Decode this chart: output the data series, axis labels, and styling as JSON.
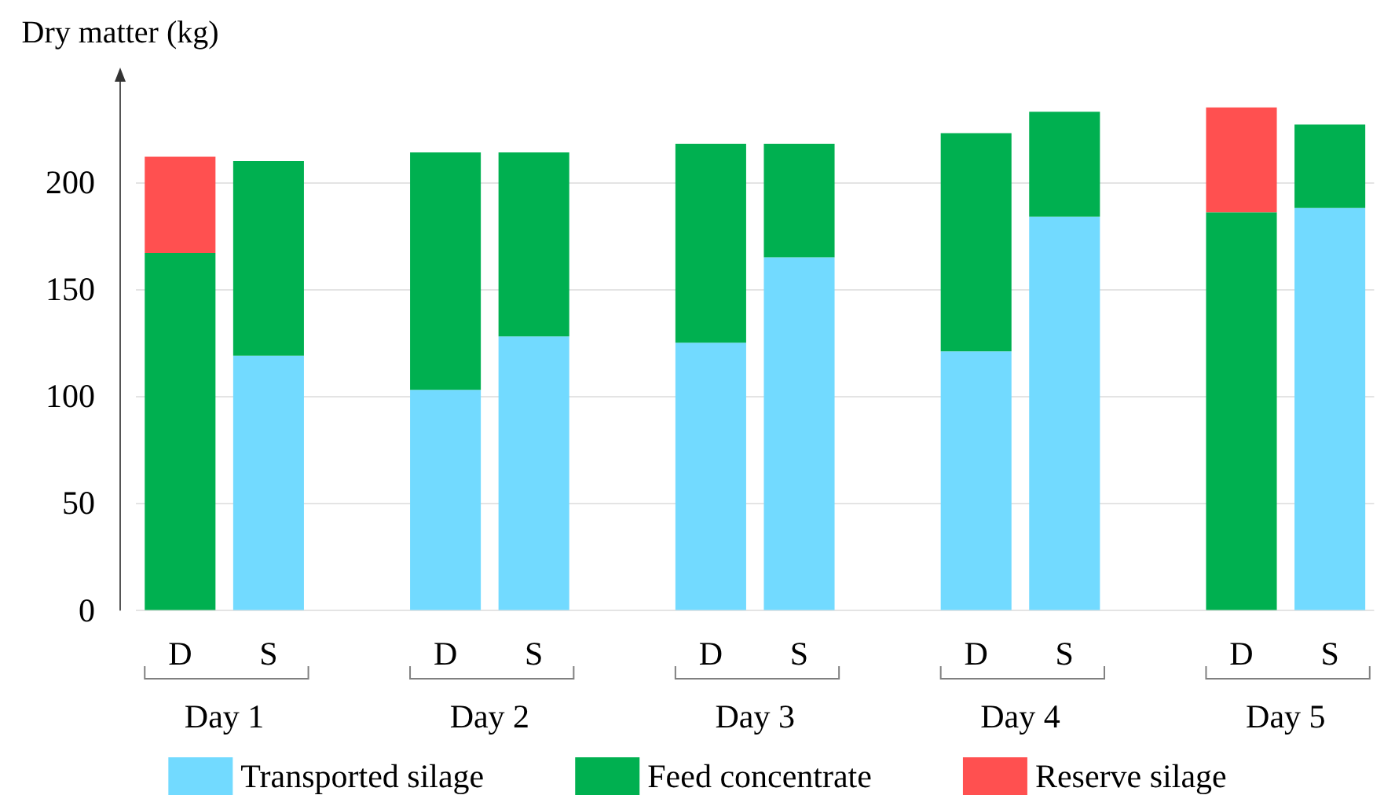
{
  "chart_data": {
    "type": "bar",
    "ylabel": "Dry matter (kg)",
    "categories": [
      "D",
      "S",
      null,
      "D",
      "S",
      null,
      "D",
      "S",
      null,
      "D",
      "S",
      null,
      "D",
      "S"
    ],
    "series": [
      {
        "name": "Transported silage",
        "color": "#72daff",
        "values": [
          null,
          119,
          null,
          103,
          128,
          null,
          125,
          165,
          null,
          121,
          184,
          null,
          null,
          188
        ]
      },
      {
        "name": "Feed concentrate",
        "color": "#00b050",
        "values": [
          167,
          91,
          null,
          111,
          86,
          null,
          93,
          53,
          null,
          102,
          49,
          null,
          186,
          39
        ]
      },
      {
        "name": "Reserve silage",
        "color": "#ff5050",
        "values": [
          45,
          null,
          null,
          null,
          null,
          null,
          null,
          null,
          null,
          null,
          null,
          null,
          49,
          null
        ]
      }
    ],
    "stacked": true,
    "ylim": [
      0,
      250
    ],
    "yticks": [
      0,
      50,
      100,
      150,
      200
    ],
    "grid": "y",
    "legend": "bottom",
    "annotations": [
      "Day 1",
      "Day 2",
      "Day 3",
      "Day 4",
      "Day 5"
    ]
  }
}
